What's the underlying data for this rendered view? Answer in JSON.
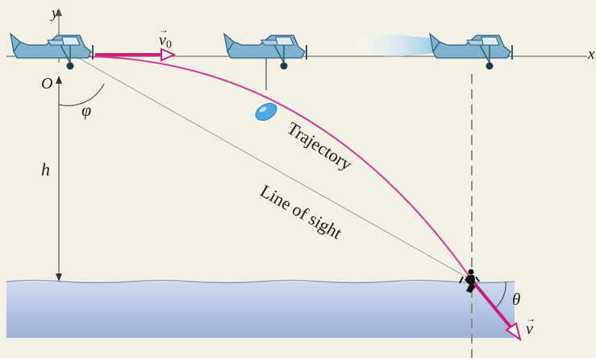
{
  "labels": {
    "y_axis": "y",
    "x_axis": "x",
    "origin": "O",
    "angle_phi": "φ",
    "height": "h",
    "angle_theta": "θ",
    "initial_velocity": "v",
    "initial_velocity_subscript": "0",
    "final_velocity": "v",
    "vector_arrow": "→",
    "trajectory": "Trajectory",
    "line_of_sight": "Line of sight"
  },
  "colors": {
    "background": "#f3f1e6",
    "trajectory": "#d63a8c",
    "velocity_vector": "#d11b7a",
    "plane": "#6fa6c4",
    "water_top": "#c9d6ec",
    "water_bottom": "#9fb4da",
    "capsule": "#4ea8e6",
    "guide_lines": "#8c8c8c"
  }
}
